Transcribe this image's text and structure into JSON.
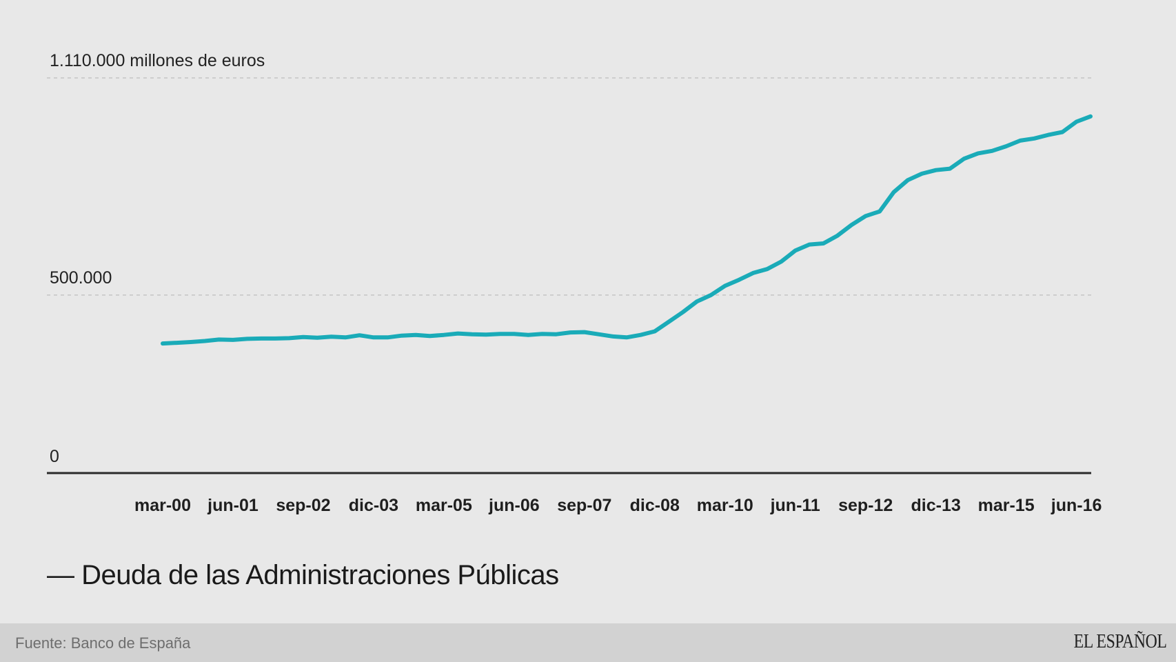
{
  "chart_data": {
    "type": "line",
    "title": "",
    "xlabel": "",
    "ylabel": "millones de euros",
    "ylim": [
      0,
      1110000
    ],
    "grid": true,
    "y_ticks": [
      {
        "value": 0,
        "label": "0"
      },
      {
        "value": 500000,
        "label": "500.000"
      },
      {
        "value": 1110000,
        "label": "1.110.000 millones de euros"
      }
    ],
    "x_tick_labels": [
      "mar-00",
      "jun-01",
      "sep-02",
      "dic-03",
      "mar-05",
      "jun-06",
      "sep-07",
      "dic-08",
      "mar-10",
      "jun-11",
      "sep-12",
      "dic-13",
      "mar-15",
      "jun-16"
    ],
    "x_tick_step_quarters": 5,
    "series": [
      {
        "name": "Deuda de las Administraciones Públicas",
        "color": "#1aabb8",
        "values": [
          364000,
          366000,
          368000,
          371000,
          375000,
          374000,
          377000,
          378000,
          378000,
          379000,
          382000,
          380000,
          383000,
          381000,
          387000,
          381000,
          381000,
          386000,
          388000,
          385000,
          388000,
          392000,
          390000,
          389000,
          391000,
          391000,
          388000,
          391000,
          390000,
          395000,
          396000,
          390000,
          384000,
          381000,
          388000,
          398000,
          425000,
          452000,
          482000,
          500000,
          526000,
          543000,
          562000,
          573000,
          594000,
          625000,
          642000,
          645000,
          667000,
          697000,
          722000,
          735000,
          789000,
          823000,
          841000,
          851000,
          855000,
          883000,
          898000,
          905000,
          918000,
          934000,
          940000,
          950000,
          958000,
          987000,
          1002000
        ]
      }
    ]
  },
  "legend": {
    "label": "— Deuda de las Administraciones Públicas"
  },
  "footer": {
    "source": "Fuente: Banco de España",
    "logo": "EL ESPAÑOL"
  }
}
